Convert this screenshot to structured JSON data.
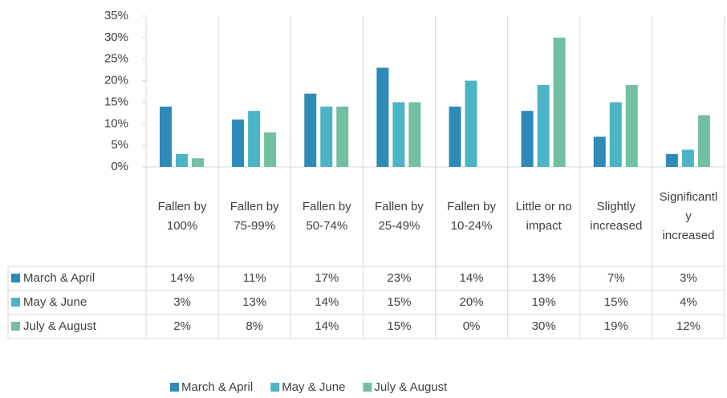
{
  "chart_data": {
    "type": "bar",
    "categories": [
      "Fallen by 100%",
      "Fallen by 75-99%",
      "Fallen by 50-74%",
      "Fallen by 25-49%",
      "Fallen by 10-24%",
      "Little or no impact",
      "Slightly increased",
      "Significantly increased"
    ],
    "series": [
      {
        "name": "March & April",
        "color": "#2e8ab6",
        "values": [
          14,
          11,
          17,
          23,
          14,
          13,
          7,
          3
        ],
        "value_labels": [
          "14%",
          "11%",
          "17%",
          "23%",
          "14%",
          "13%",
          "7%",
          "3%"
        ]
      },
      {
        "name": "May & June",
        "color": "#4cb4c6",
        "values": [
          3,
          13,
          14,
          15,
          20,
          19,
          15,
          4
        ],
        "value_labels": [
          "3%",
          "13%",
          "14%",
          "15%",
          "20%",
          "19%",
          "15%",
          "4%"
        ]
      },
      {
        "name": "July & August",
        "color": "#72bfa2",
        "values": [
          2,
          8,
          14,
          15,
          0,
          30,
          19,
          12
        ],
        "value_labels": [
          "2%",
          "8%",
          "14%",
          "15%",
          "0%",
          "30%",
          "19%",
          "12%"
        ]
      }
    ],
    "ylim": [
      0,
      35
    ],
    "yticks": [
      {
        "value": 0,
        "label": "0%"
      },
      {
        "value": 5,
        "label": "5%"
      },
      {
        "value": 10,
        "label": "10%"
      },
      {
        "value": 15,
        "label": "15%"
      },
      {
        "value": 20,
        "label": "20%"
      },
      {
        "value": 25,
        "label": "25%"
      },
      {
        "value": 30,
        "label": "30%"
      },
      {
        "value": 35,
        "label": "35%"
      }
    ],
    "legend": "bottom"
  }
}
